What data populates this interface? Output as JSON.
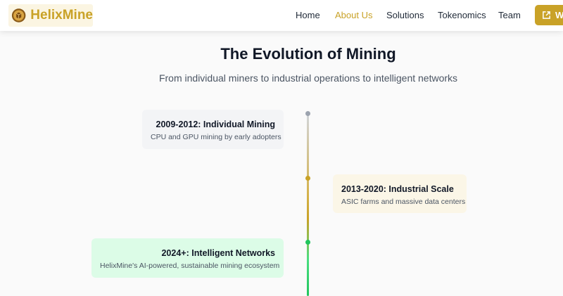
{
  "brand": {
    "name": "HelixMine",
    "color": "#c9a227"
  },
  "nav": {
    "items": [
      {
        "label": "Home",
        "active": false
      },
      {
        "label": "About Us",
        "active": true
      },
      {
        "label": "Solutions",
        "active": false
      },
      {
        "label": "Tokenomics",
        "active": false
      },
      {
        "label": "Team",
        "active": false
      }
    ],
    "cta_label": "W"
  },
  "section": {
    "title": "The Evolution of Mining",
    "subtitle": "From individual miners to industrial operations to intelligent networks"
  },
  "timeline": [
    {
      "title": "2009-2012: Individual Mining",
      "description": "CPU and GPU mining by early adopters",
      "side": "left",
      "card_color": "#f3f4f6",
      "dot_color": "#9ca3af"
    },
    {
      "title": "2013-2020: Industrial Scale",
      "description": "ASIC farms and massive data centers",
      "side": "right",
      "card_color": "#fbf6e7",
      "dot_color": "#c9a227"
    },
    {
      "title": "2024+: Intelligent Networks",
      "description": "HelixMine's AI-powered, sustainable mining ecosystem",
      "side": "left",
      "card_color": "#dcfce7",
      "dot_color": "#22c55e"
    }
  ]
}
